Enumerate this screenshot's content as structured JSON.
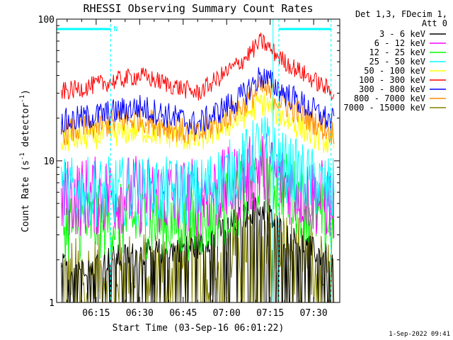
{
  "chart_data": {
    "type": "line",
    "title": "RHESSI Observing Summary Count Rates",
    "xlabel": "Start Time (03-Sep-16 06:01:22)",
    "ylabel": "Count Rate (s⁻¹ detector⁻¹)",
    "ylabel_parts": {
      "prefix": "Count Rate (s",
      "sup1": "-1",
      "mid": " detector",
      "sup2": "-1",
      "suffix": ")"
    },
    "x_range": [
      "06:01:22",
      "07:39:00"
    ],
    "y_range": [
      1,
      100
    ],
    "y_scale": "log",
    "grid": false,
    "legend_position": "top-right",
    "x_ticks": [
      "06:15",
      "06:30",
      "06:45",
      "07:00",
      "07:15",
      "07:30"
    ],
    "y_ticks": [
      "1",
      "10",
      "100"
    ],
    "legend_header": [
      "Det 1,3, FDecim 1,",
      "Att 0"
    ],
    "timestamp": "1-Sep-2022 09:41",
    "markers": {
      "night_label": "N",
      "dashed_lines_at": [
        "06:20",
        "07:18",
        "07:36"
      ],
      "solid_line_at": "07:16",
      "top_bars": [
        [
          "06:01:22",
          "06:20"
        ],
        [
          "07:18",
          "07:36"
        ]
      ]
    },
    "series": [
      {
        "name": "3 - 6 keV",
        "color": "#000000",
        "values": [
          [
            "06:05",
            1.8
          ],
          [
            "06:30",
            2.2
          ],
          [
            "06:50",
            2.5
          ],
          [
            "07:05",
            4.0
          ],
          [
            "07:12",
            4.8
          ],
          [
            "07:20",
            3.0
          ],
          [
            "07:36",
            2.0
          ]
        ]
      },
      {
        "name": "6 - 12 keV",
        "color": "#ff00ff",
        "values": [
          [
            "06:05",
            5.5
          ],
          [
            "06:25",
            5.8
          ],
          [
            "06:50",
            5.5
          ],
          [
            "07:05",
            7.0
          ],
          [
            "07:12",
            9.0
          ],
          [
            "07:20",
            7.0
          ],
          [
            "07:36",
            5.0
          ]
        ]
      },
      {
        "name": "12 - 25 keV",
        "color": "#00ff00",
        "values": [
          [
            "06:05",
            3.5
          ],
          [
            "06:25",
            3.8
          ],
          [
            "06:50",
            3.6
          ],
          [
            "07:05",
            5.5
          ],
          [
            "07:12",
            8.0
          ],
          [
            "07:20",
            6.5
          ],
          [
            "07:36",
            3.5
          ]
        ]
      },
      {
        "name": "25 - 50 keV",
        "color": "#00ffff",
        "values": [
          [
            "06:05",
            6.0
          ],
          [
            "06:25",
            6.1
          ],
          [
            "06:50",
            6.0
          ],
          [
            "07:05",
            9.0
          ],
          [
            "07:12",
            13.0
          ],
          [
            "07:20",
            9.0
          ],
          [
            "07:36",
            6.0
          ]
        ]
      },
      {
        "name": "50 - 100 keV",
        "color": "#ffff00",
        "values": [
          [
            "06:05",
            14.0
          ],
          [
            "06:30",
            16.5
          ],
          [
            "06:50",
            14.0
          ],
          [
            "07:05",
            20.0
          ],
          [
            "07:12",
            26.0
          ],
          [
            "07:20",
            20.0
          ],
          [
            "07:36",
            13.0
          ]
        ]
      },
      {
        "name": "100 - 300 keV",
        "color": "#ff0000",
        "values": [
          [
            "06:05",
            31.0
          ],
          [
            "06:30",
            40.0
          ],
          [
            "06:50",
            30.0
          ],
          [
            "07:05",
            50.0
          ],
          [
            "07:12",
            70.0
          ],
          [
            "07:20",
            50.0
          ],
          [
            "07:36",
            31.0
          ]
        ]
      },
      {
        "name": "300 - 800 keV",
        "color": "#0000ff",
        "values": [
          [
            "06:05",
            19.0
          ],
          [
            "06:30",
            24.0
          ],
          [
            "06:50",
            18.0
          ],
          [
            "07:05",
            28.0
          ],
          [
            "07:12",
            40.0
          ],
          [
            "07:20",
            30.0
          ],
          [
            "07:36",
            19.0
          ]
        ]
      },
      {
        "name": "800 - 7000 keV",
        "color": "#ff8c00",
        "values": [
          [
            "06:05",
            16.0
          ],
          [
            "06:30",
            20.0
          ],
          [
            "06:50",
            15.0
          ],
          [
            "07:05",
            24.0
          ],
          [
            "07:12",
            33.0
          ],
          [
            "07:20",
            25.0
          ],
          [
            "07:36",
            16.0
          ]
        ]
      },
      {
        "name": "7000 - 15000 keV",
        "color": "#808000",
        "values": [
          [
            "06:05",
            1.5
          ],
          [
            "06:30",
            1.7
          ],
          [
            "06:50",
            1.8
          ],
          [
            "07:05",
            2.6
          ],
          [
            "07:12",
            3.6
          ],
          [
            "07:20",
            2.4
          ],
          [
            "07:36",
            1.5
          ]
        ]
      }
    ]
  }
}
